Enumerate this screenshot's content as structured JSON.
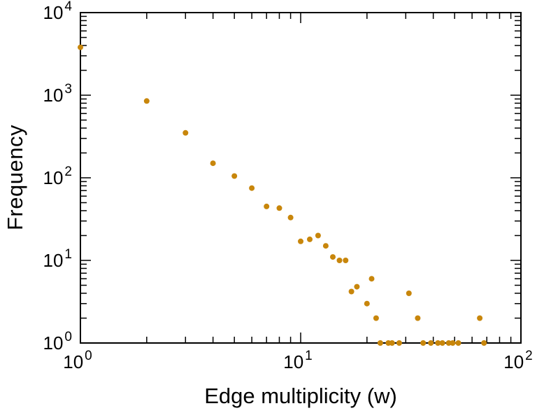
{
  "figure": {
    "background": "#ffffff"
  },
  "chart_data": {
    "type": "scatter",
    "title": "",
    "xlabel": "Edge multiplicity (w)",
    "ylabel": "Frequency",
    "x_scale": "log",
    "y_scale": "log",
    "xlim": [
      1,
      100
    ],
    "ylim": [
      1,
      10000
    ],
    "tick_base": "10",
    "x_tick_exponents": [
      0,
      1,
      2
    ],
    "y_tick_exponents": [
      0,
      1,
      2,
      3,
      4
    ],
    "grid": false,
    "legend": false,
    "marker": "filled-circle",
    "point_color": "#C8860B",
    "frame_color": "#000000",
    "points": [
      {
        "x": 1,
        "y": 3800
      },
      {
        "x": 2,
        "y": 850
      },
      {
        "x": 3,
        "y": 350
      },
      {
        "x": 4,
        "y": 150
      },
      {
        "x": 5,
        "y": 105
      },
      {
        "x": 6,
        "y": 75
      },
      {
        "x": 7,
        "y": 45
      },
      {
        "x": 8,
        "y": 43
      },
      {
        "x": 9,
        "y": 33
      },
      {
        "x": 10,
        "y": 17
      },
      {
        "x": 11,
        "y": 18
      },
      {
        "x": 12,
        "y": 20
      },
      {
        "x": 13,
        "y": 15
      },
      {
        "x": 14,
        "y": 11
      },
      {
        "x": 15,
        "y": 10
      },
      {
        "x": 16,
        "y": 10
      },
      {
        "x": 17,
        "y": 4.2
      },
      {
        "x": 18,
        "y": 4.8
      },
      {
        "x": 20,
        "y": 3
      },
      {
        "x": 21,
        "y": 6
      },
      {
        "x": 22,
        "y": 2
      },
      {
        "x": 23,
        "y": 1
      },
      {
        "x": 25,
        "y": 1
      },
      {
        "x": 26,
        "y": 1
      },
      {
        "x": 28,
        "y": 1
      },
      {
        "x": 31,
        "y": 4
      },
      {
        "x": 34,
        "y": 2
      },
      {
        "x": 36,
        "y": 1
      },
      {
        "x": 39,
        "y": 1
      },
      {
        "x": 42,
        "y": 1
      },
      {
        "x": 44,
        "y": 1
      },
      {
        "x": 47,
        "y": 1
      },
      {
        "x": 49,
        "y": 1
      },
      {
        "x": 52,
        "y": 1
      },
      {
        "x": 65,
        "y": 2
      },
      {
        "x": 68,
        "y": 1
      }
    ]
  }
}
